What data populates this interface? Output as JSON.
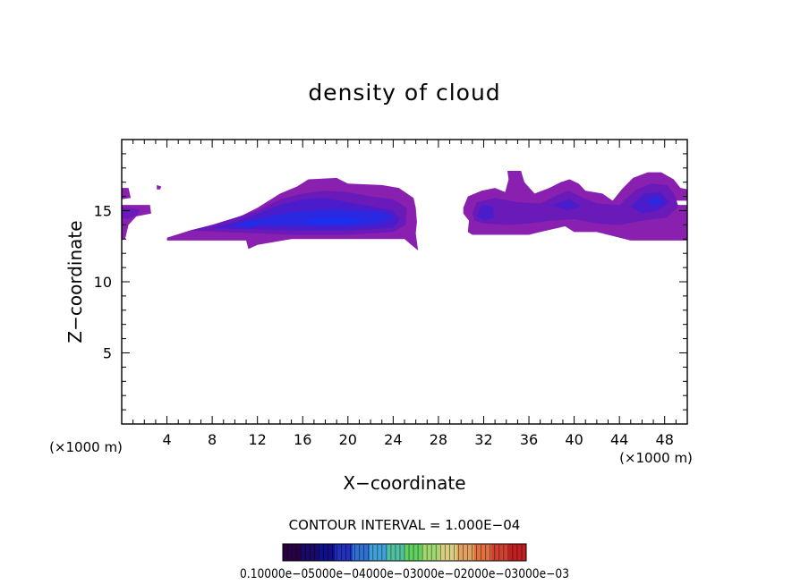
{
  "chart_data": {
    "type": "heatmap",
    "title": "density of cloud",
    "xlabel": "X−coordinate",
    "ylabel": "Z−coordinate",
    "x_unit_left": "(×1000 m)",
    "x_unit_right": "(×1000 m)",
    "xlim": [
      0,
      50
    ],
    "ylim": [
      0,
      20
    ],
    "x_ticks": [
      4,
      8,
      12,
      16,
      20,
      24,
      28,
      32,
      36,
      40,
      44,
      48
    ],
    "y_ticks": [
      5,
      10,
      15
    ],
    "contour_interval_text": "CONTOUR INTERVAL = 1.000E−04",
    "colorbar_labels_text": "0.10000e−05000e−04000e−03000e−02000e−03000e−03",
    "colorbar_colors": [
      "#2a0044",
      "#1a0a66",
      "#10108a",
      "#2030b8",
      "#3070d0",
      "#40a0d8",
      "#50c0a0",
      "#60d060",
      "#a0d870",
      "#d8d080",
      "#e0a060",
      "#e07040",
      "#d04030",
      "#c02020"
    ],
    "colors": {
      "outer": "#8a20b0",
      "mid": "#6a1ab8",
      "inner": "#4a1ccc",
      "core": "#2a28e0",
      "peak": "#1a30f0"
    },
    "clouds": [
      {
        "layers": [
          {
            "level": "outer",
            "poly": [
              [
                0,
                16.6
              ],
              [
                0.6,
                16.6
              ],
              [
                0.8,
                15.9
              ],
              [
                0,
                15.8
              ]
            ]
          },
          {
            "level": "outer",
            "poly": [
              [
                3.1,
                16.8
              ],
              [
                3.5,
                16.7
              ],
              [
                3.4,
                16.5
              ],
              [
                3.1,
                16.5
              ]
            ]
          },
          {
            "level": "outer",
            "poly": [
              [
                0,
                15.4
              ],
              [
                2.5,
                15.4
              ],
              [
                2.6,
                14.8
              ],
              [
                1.3,
                14.6
              ],
              [
                0.6,
                14.0
              ],
              [
                0.3,
                13.0
              ],
              [
                0,
                13.0
              ]
            ]
          },
          {
            "level": "mid",
            "poly": [
              [
                0,
                15.2
              ],
              [
                1.6,
                15.1
              ],
              [
                1.4,
                14.7
              ],
              [
                0.5,
                14.4
              ],
              [
                0,
                14.5
              ]
            ]
          }
        ]
      },
      {
        "layers": [
          {
            "level": "outer",
            "poly": [
              [
                4,
                13.1
              ],
              [
                6,
                13.6
              ],
              [
                8,
                14.0
              ],
              [
                10,
                14.4
              ],
              [
                12,
                15.2
              ],
              [
                14,
                16.2
              ],
              [
                15.5,
                16.7
              ],
              [
                16.5,
                17.2
              ],
              [
                19,
                17.3
              ],
              [
                20,
                16.9
              ],
              [
                23,
                16.8
              ],
              [
                24.5,
                16.6
              ],
              [
                25.8,
                15.9
              ],
              [
                26,
                15.2
              ],
              [
                26.1,
                14.2
              ],
              [
                26,
                13.4
              ],
              [
                26.2,
                12.2
              ],
              [
                25.6,
                12.6
              ],
              [
                25,
                13.0
              ],
              [
                20,
                13.0
              ],
              [
                15,
                13.0
              ],
              [
                12,
                12.6
              ],
              [
                11.2,
                12.3
              ],
              [
                11,
                12.9
              ],
              [
                4,
                12.9
              ]
            ]
          },
          {
            "level": "mid",
            "poly": [
              [
                6,
                13.6
              ],
              [
                8,
                14.0
              ],
              [
                10,
                14.5
              ],
              [
                12,
                15.0
              ],
              [
                14,
                15.8
              ],
              [
                16,
                16.2
              ],
              [
                18,
                16.4
              ],
              [
                20,
                16.3
              ],
              [
                22,
                16.0
              ],
              [
                24,
                15.8
              ],
              [
                25.2,
                15.2
              ],
              [
                25.1,
                14.0
              ],
              [
                24,
                13.5
              ],
              [
                20,
                13.3
              ],
              [
                15,
                13.3
              ],
              [
                12,
                13.4
              ],
              [
                9,
                13.5
              ]
            ]
          },
          {
            "level": "inner",
            "poly": [
              [
                8,
                13.8
              ],
              [
                10,
                14.2
              ],
              [
                12,
                14.8
              ],
              [
                14,
                15.4
              ],
              [
                16,
                15.8
              ],
              [
                18,
                15.9
              ],
              [
                20,
                15.6
              ],
              [
                22,
                15.3
              ],
              [
                24,
                15.0
              ],
              [
                24.6,
                14.4
              ],
              [
                24,
                13.8
              ],
              [
                20,
                13.6
              ],
              [
                16,
                13.6
              ],
              [
                12,
                13.7
              ],
              [
                10,
                13.7
              ]
            ]
          },
          {
            "level": "core",
            "poly": [
              [
                9,
                13.9
              ],
              [
                11,
                14.2
              ],
              [
                13,
                14.6
              ],
              [
                15,
                14.9
              ],
              [
                17,
                15.0
              ],
              [
                19,
                15.1
              ],
              [
                21,
                15.0
              ],
              [
                23,
                14.9
              ],
              [
                24,
                14.6
              ],
              [
                23,
                14.1
              ],
              [
                20,
                13.9
              ],
              [
                16,
                13.9
              ],
              [
                12,
                14.0
              ]
            ]
          },
          {
            "level": "peak",
            "poly": [
              [
                10,
                13.95
              ],
              [
                11.5,
                14.25
              ],
              [
                12.4,
                14.1
              ],
              [
                11.2,
                13.85
              ]
            ]
          },
          {
            "level": "peak",
            "poly": [
              [
                16,
                14.3
              ],
              [
                18,
                14.5
              ],
              [
                20,
                14.5
              ],
              [
                21.5,
                14.3
              ],
              [
                20,
                14.1
              ],
              [
                17,
                14.1
              ]
            ]
          }
        ]
      },
      {
        "layers": [
          {
            "level": "outer",
            "poly": [
              [
                30.2,
                15.2
              ],
              [
                30.6,
                16.0
              ],
              [
                31.8,
                16.4
              ],
              [
                33,
                16.6
              ],
              [
                33.9,
                16.3
              ],
              [
                34.2,
                17.2
              ],
              [
                34.1,
                17.8
              ],
              [
                35.3,
                17.8
              ],
              [
                35.6,
                17.0
              ],
              [
                36.5,
                16.2
              ],
              [
                37.8,
                16.6
              ],
              [
                38.8,
                17.0
              ],
              [
                39.6,
                17.2
              ],
              [
                40.4,
                16.9
              ],
              [
                41,
                16.4
              ],
              [
                42.5,
                16.2
              ],
              [
                43.4,
                15.7
              ],
              [
                44.2,
                16.5
              ],
              [
                45.2,
                17.3
              ],
              [
                46.5,
                17.7
              ],
              [
                47.7,
                17.7
              ],
              [
                48.8,
                17.2
              ],
              [
                49.4,
                16.6
              ],
              [
                50,
                16.5
              ],
              [
                50,
                15.7
              ],
              [
                48.7,
                15.7
              ],
              [
                48.6,
                15.4
              ],
              [
                50,
                15.4
              ],
              [
                50,
                12.9
              ],
              [
                45,
                12.9
              ],
              [
                42,
                13.5
              ],
              [
                40,
                13.5
              ],
              [
                39.2,
                13.9
              ],
              [
                37,
                13.5
              ],
              [
                36,
                13.3
              ],
              [
                34,
                13.3
              ],
              [
                31,
                13.3
              ],
              [
                30.6,
                13.5
              ],
              [
                30.7,
                14.3
              ],
              [
                30.2,
                14.8
              ]
            ]
          },
          {
            "level": "mid",
            "poly": [
              [
                31,
                14.8
              ],
              [
                31.4,
                15.6
              ],
              [
                33,
                15.9
              ],
              [
                35,
                15.6
              ],
              [
                37,
                15.5
              ],
              [
                38.5,
                16.1
              ],
              [
                39.5,
                16.4
              ],
              [
                40.8,
                15.9
              ],
              [
                42,
                15.5
              ],
              [
                44,
                15.4
              ],
              [
                45.5,
                16.5
              ],
              [
                46.8,
                16.9
              ],
              [
                48.2,
                16.8
              ],
              [
                48.9,
                16.1
              ],
              [
                49.2,
                15.3
              ],
              [
                48.2,
                14.5
              ],
              [
                46,
                14.3
              ],
              [
                44,
                14.0
              ],
              [
                42,
                14.1
              ],
              [
                40,
                14.4
              ],
              [
                38,
                14.3
              ],
              [
                36,
                14.1
              ],
              [
                34,
                14.0
              ],
              [
                32,
                14.1
              ],
              [
                31.2,
                14.3
              ]
            ]
          },
          {
            "level": "inner",
            "poly": [
              [
                31.4,
                14.6
              ],
              [
                31.8,
                15.4
              ],
              [
                32.8,
                15.3
              ],
              [
                32.9,
                14.5
              ],
              [
                32,
                14.3
              ]
            ]
          },
          {
            "level": "inner",
            "poly": [
              [
                38,
                15.4
              ],
              [
                39.6,
                15.8
              ],
              [
                40.6,
                15.3
              ],
              [
                39.4,
                15.0
              ]
            ]
          },
          {
            "level": "inner",
            "poly": [
              [
                45,
                15.3
              ],
              [
                46.2,
                16.2
              ],
              [
                47.6,
                16.3
              ],
              [
                48.4,
                15.6
              ],
              [
                47.4,
                15.0
              ],
              [
                46,
                14.8
              ]
            ]
          },
          {
            "level": "core",
            "poly": [
              [
                46.4,
                15.6
              ],
              [
                47.2,
                16.0
              ],
              [
                47.9,
                15.6
              ],
              [
                47.1,
                15.3
              ]
            ]
          }
        ]
      }
    ]
  }
}
